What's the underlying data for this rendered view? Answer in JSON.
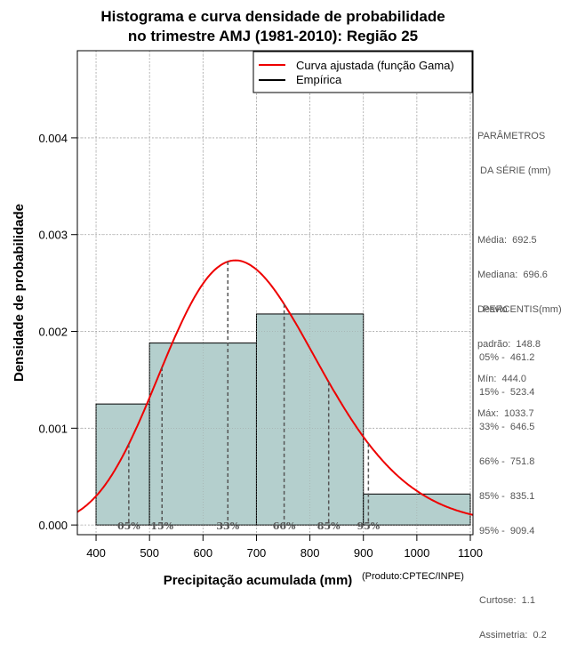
{
  "chart_data": {
    "type": "histogram",
    "title_line1": "Histograma e curva densidade de probabilidade",
    "title_line2": "no trimestre AMJ (1981-2010): Região 25",
    "xlabel": "Precipitação acumulada (mm)",
    "ylabel": "Densidade de probabilidade",
    "credit": "(Produto:CPTEC/INPE)",
    "xlim": [
      365,
      1105
    ],
    "ylim": [
      -0.0001,
      0.0049
    ],
    "x_ticks": [
      400,
      500,
      600,
      700,
      800,
      900,
      1000,
      1100
    ],
    "y_ticks": [
      0.0,
      0.001,
      0.002,
      0.003,
      0.004
    ],
    "y_tick_labels": [
      "0.000",
      "0.001",
      "0.002",
      "0.003",
      "0.004"
    ],
    "grid": true,
    "bins": [
      {
        "from": 400,
        "to": 500,
        "density": 0.00125
      },
      {
        "from": 500,
        "to": 700,
        "density": 0.00188
      },
      {
        "from": 700,
        "to": 900,
        "density": 0.00218
      },
      {
        "from": 900,
        "to": 1100,
        "density": 0.00032
      }
    ],
    "curve": {
      "name": "Curva ajustada (função Gama)",
      "mean": 692.5,
      "sd": 148.8,
      "color": "#ee0000"
    },
    "legend": [
      {
        "label": "Curva ajustada (função Gama)",
        "color": "#ee0000"
      },
      {
        "label": "Empírica",
        "color": "#000000"
      }
    ],
    "percentile_markers": [
      {
        "label": "05%",
        "x": 461.2
      },
      {
        "label": "15%",
        "x": 523.4
      },
      {
        "label": "33%",
        "x": 646.5
      },
      {
        "label": "66%",
        "x": 751.8
      },
      {
        "label": "85%",
        "x": 835.1
      },
      {
        "label": "95%",
        "x": 909.4
      }
    ],
    "colors": {
      "bar_fill": "#b4cfcd",
      "bar_stroke": "#000000",
      "grid": "#b0b0b0",
      "marker": "#555555"
    }
  },
  "side_panel": {
    "params_title_1": "PARÂMETROS",
    "params_title_2": " DA SÉRIE (mm)",
    "media": "Média:  692.5",
    "mediana": "Mediana:  696.6",
    "desvio_1": "Desvio",
    "desvio_2": "padrão:  148.8",
    "min": "Mín:  444.0",
    "max": "Máx:  1033.7",
    "percentis_title": "PERCENTIS(mm)",
    "p05": "05% -  461.2",
    "p15": "15% -  523.4",
    "p33": "33% -  646.5",
    "p66": "66% -  751.8",
    "p85": "85% -  835.1",
    "p95": "95% -  909.4",
    "curtose": "Curtose:  1.1",
    "assimetria": "Assimetria:  0.2"
  }
}
